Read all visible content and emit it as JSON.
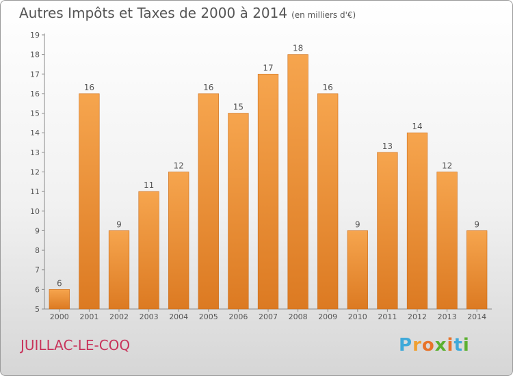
{
  "title": "Autres Impôts et Taxes de 2000 à 2014",
  "title_unit": "(en milliers d'€)",
  "location": "JUILLAC-LE-COQ",
  "logo": {
    "letters": [
      "P",
      "r",
      "o",
      "x",
      "i",
      "t",
      "i"
    ],
    "colors": [
      "#3fa9d9",
      "#f0a030",
      "#e8732a",
      "#5bb030",
      "#e8732a",
      "#3fa9d9",
      "#5bb030"
    ]
  },
  "colors": {
    "bar_top": "#f6a54e",
    "bar_bottom": "#dc7a22",
    "bar_edge": "#c96d1d",
    "axis": "#888888",
    "text": "#555555"
  },
  "chart_data": {
    "type": "bar",
    "categories": [
      "2000",
      "2001",
      "2002",
      "2003",
      "2004",
      "2005",
      "2006",
      "2007",
      "2008",
      "2009",
      "2010",
      "2011",
      "2012",
      "2013",
      "2014"
    ],
    "values": [
      6,
      16,
      9,
      11,
      12,
      16,
      15,
      17,
      18,
      16,
      9,
      13,
      14,
      12,
      9
    ],
    "title": "Autres Impôts et Taxes de 2000 à 2014",
    "xlabel": "",
    "ylabel": "",
    "ylim": [
      5,
      19
    ],
    "yticks": [
      5,
      6,
      7,
      8,
      9,
      10,
      11,
      12,
      13,
      14,
      15,
      16,
      17,
      18,
      19
    ],
    "grid": false,
    "data_labels": true
  }
}
